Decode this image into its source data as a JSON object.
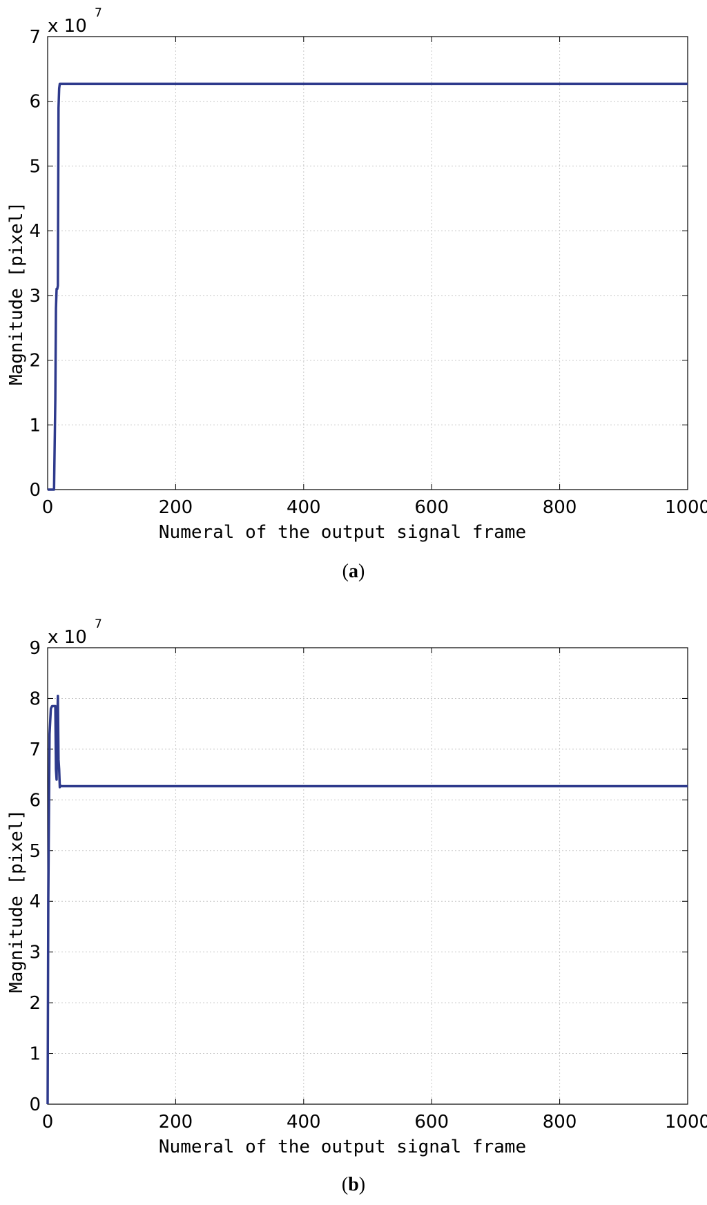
{
  "chart_data": [
    {
      "type": "line",
      "panel_label": "a",
      "xlabel": "Numeral of the output signal frame",
      "ylabel": "Magnitude [pixel]",
      "y_multiplier": "x 10",
      "y_exponent": "7",
      "xlim": [
        0,
        1000
      ],
      "ylim": [
        0,
        7
      ],
      "xticks": [
        0,
        200,
        400,
        600,
        800,
        1000
      ],
      "yticks": [
        0,
        1,
        2,
        3,
        4,
        5,
        6,
        7
      ],
      "grid": true,
      "line_color": "#2e3a8c",
      "series": [
        {
          "x": [
            0,
            10,
            12,
            13,
            14,
            15,
            16,
            17,
            18,
            19,
            20,
            1000
          ],
          "y": [
            0,
            0,
            1.4,
            2.8,
            3.1,
            3.1,
            3.15,
            5.9,
            6.2,
            6.27,
            6.27,
            6.27
          ]
        }
      ]
    },
    {
      "type": "line",
      "panel_label": "b",
      "xlabel": "Numeral of the output signal frame",
      "ylabel": "Magnitude [pixel]",
      "y_multiplier": "x 10",
      "y_exponent": "7",
      "xlim": [
        0,
        1000
      ],
      "ylim": [
        0,
        9
      ],
      "xticks": [
        0,
        200,
        400,
        600,
        800,
        1000
      ],
      "yticks": [
        0,
        1,
        2,
        3,
        4,
        5,
        6,
        7,
        8,
        9
      ],
      "grid": true,
      "line_color": "#2e3a8c",
      "series": [
        {
          "x": [
            0,
            1,
            3,
            5,
            7,
            10,
            12,
            13,
            14,
            15,
            16,
            17,
            18,
            19,
            20,
            22,
            1000
          ],
          "y": [
            0,
            4.0,
            7.3,
            7.8,
            7.85,
            7.85,
            7.85,
            6.6,
            6.4,
            7.5,
            8.05,
            6.8,
            6.6,
            6.25,
            6.28,
            6.27,
            6.27
          ]
        }
      ]
    }
  ]
}
